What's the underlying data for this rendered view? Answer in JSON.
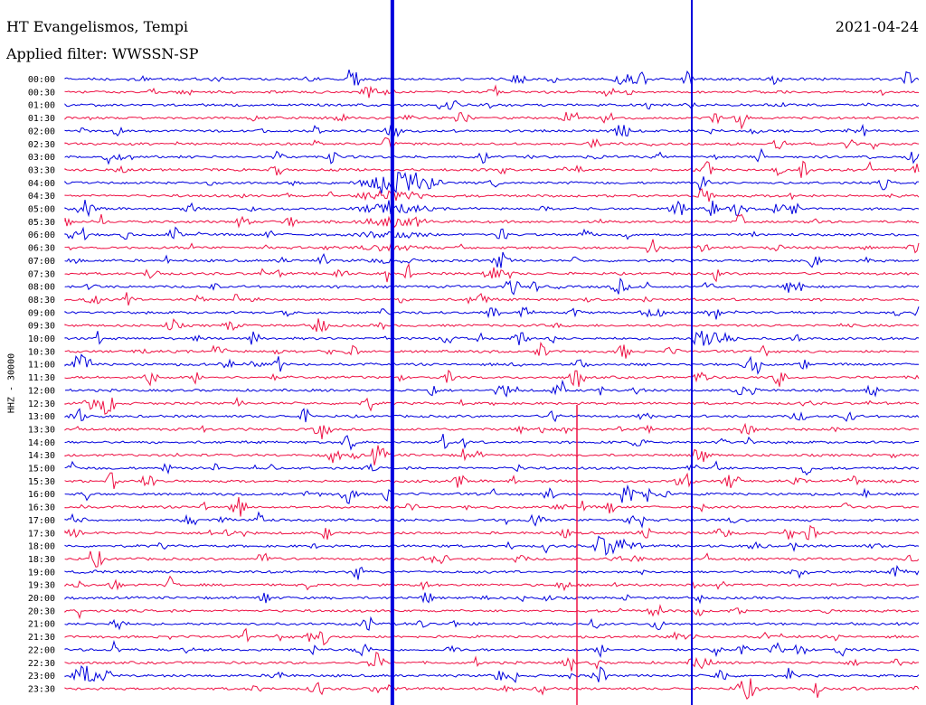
{
  "header": {
    "station": "HT Evangelismos, Tempi",
    "filter": "Applied filter: WWSSN-SP",
    "date": "2021-04-24",
    "channel": "HHZ - 30000"
  },
  "colors": {
    "trace_a": "#0000dd",
    "trace_b": "#ee1144"
  },
  "chart_data": {
    "type": "line",
    "title": "HT Evangelismos, Tempi",
    "ylabel": "HHZ - 30000",
    "rows": [
      "00:00",
      "00:30",
      "01:00",
      "01:30",
      "02:00",
      "02:30",
      "03:00",
      "03:30",
      "04:00",
      "04:30",
      "05:00",
      "05:30",
      "06:00",
      "06:30",
      "07:00",
      "07:30",
      "08:00",
      "08:30",
      "09:00",
      "09:30",
      "10:00",
      "10:30",
      "11:00",
      "11:30",
      "12:00",
      "12:30",
      "13:00",
      "13:30",
      "14:00",
      "14:30",
      "15:00",
      "15:30",
      "16:00",
      "16:30",
      "17:00",
      "17:30",
      "18:00",
      "18:30",
      "19:00",
      "19:30",
      "20:00",
      "20:30",
      "21:00",
      "21:30",
      "22:00",
      "22:30",
      "23:00",
      "23:30"
    ],
    "row_duration_min": 30,
    "row_colors": [
      "trace_a",
      "trace_b"
    ],
    "major_events": [
      {
        "time": "04:00",
        "offset_min": 11.5,
        "description": "large event, coda through 07:00"
      },
      {
        "time": "10:00",
        "offset_min": 22.0,
        "description": "event"
      },
      {
        "time": "16:00",
        "offset_min": 19.5,
        "description": "event with coda"
      },
      {
        "time": "18:00",
        "offset_min": 18.5,
        "description": "event"
      }
    ],
    "grid": false
  }
}
